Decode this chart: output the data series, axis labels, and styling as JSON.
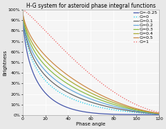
{
  "title": "H-G system for asteroid phase integral functions",
  "xlabel": "Phase angle",
  "ylabel": "Brightness",
  "xlim": [
    0,
    120
  ],
  "ylim": [
    0,
    1.0
  ],
  "ytick_labels": [
    "0%",
    "10%",
    "20%",
    "30%",
    "40%",
    "50%",
    "60%",
    "70%",
    "80%",
    "90%",
    "100%"
  ],
  "ytick_vals": [
    0.0,
    0.1,
    0.2,
    0.3,
    0.4,
    0.5,
    0.6,
    0.7,
    0.8,
    0.9,
    1.0
  ],
  "xtick_vals": [
    0,
    20,
    40,
    60,
    80,
    100,
    120
  ],
  "G_values": [
    -0.25,
    0,
    0.1,
    0.2,
    0.3,
    0.4,
    0.5,
    1.0
  ],
  "G_labels": [
    "G=-0.25",
    "G=0",
    "G=0.1",
    "G=0.2",
    "G=0.3",
    "G=0.4",
    "G=0.5",
    "G=1"
  ],
  "G_colors": [
    "#4455aa",
    "#00ccee",
    "#666666",
    "#66aadd",
    "#88bb44",
    "#aaaa33",
    "#cc8844",
    "#ee5555"
  ],
  "G_styles": [
    "-",
    ":",
    "-",
    "-",
    "-",
    "-",
    "-",
    ":"
  ],
  "G_linewidths": [
    0.9,
    0.9,
    0.9,
    0.9,
    0.9,
    0.9,
    0.9,
    0.9
  ],
  "background_color": "#e8e8e8",
  "plot_bg_color": "#f5f5f5",
  "grid_color": "#ffffff",
  "title_fontsize": 5.5,
  "axis_fontsize": 5,
  "tick_fontsize": 4.5,
  "legend_fontsize": 4.5
}
